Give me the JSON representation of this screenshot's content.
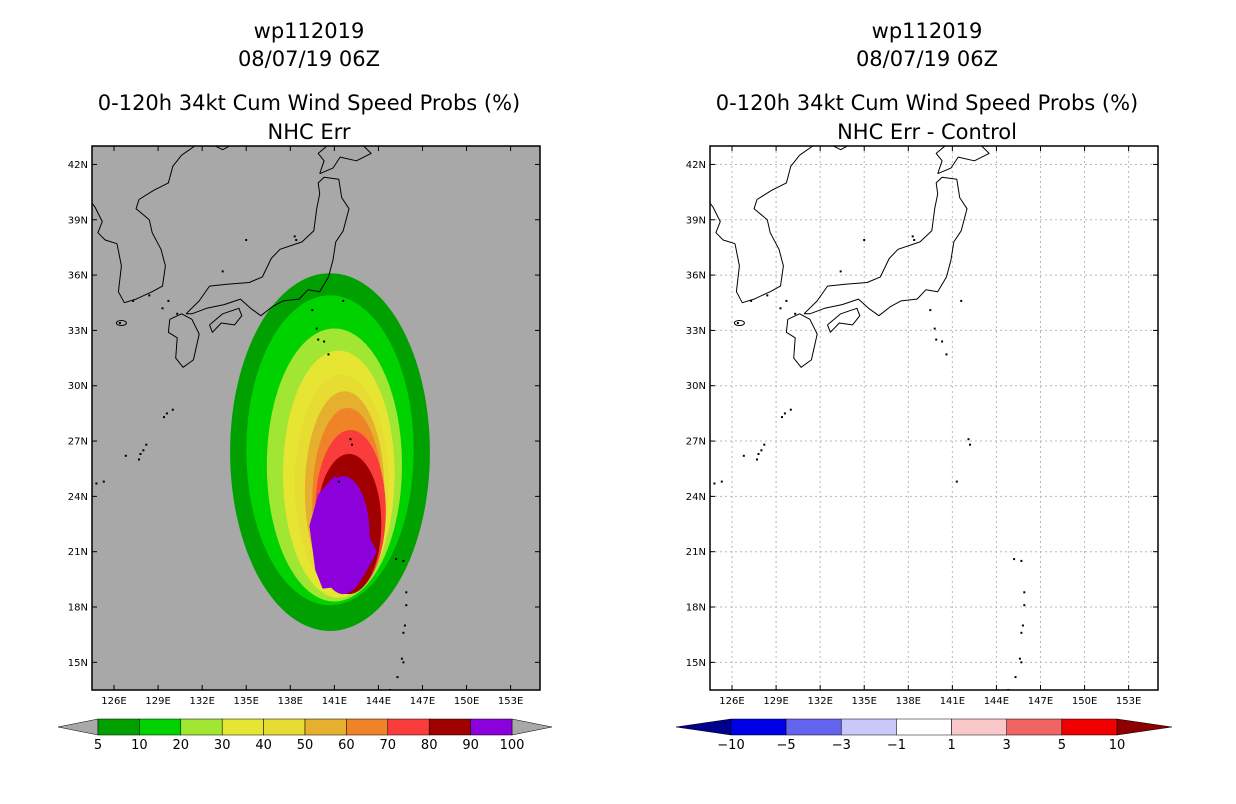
{
  "chart_data": [
    {
      "type": "heatmap",
      "title": [
        "wp112019",
        "08/07/19 06Z",
        "0-120h 34kt Cum Wind Speed Probs (%)",
        "NHC Err"
      ],
      "x_ticks": [
        "126E",
        "129E",
        "132E",
        "135E",
        "138E",
        "141E",
        "144E",
        "147E",
        "150E",
        "153E"
      ],
      "y_ticks": [
        "15N",
        "18N",
        "21N",
        "24N",
        "27N",
        "30N",
        "33N",
        "36N",
        "39N",
        "42N"
      ],
      "x_range_lon": [
        124.5,
        155.0
      ],
      "y_range_lat": [
        13.5,
        43.0
      ],
      "grid": false,
      "background": "#a8a8a8",
      "contour_levels": [
        5,
        10,
        20,
        30,
        40,
        50,
        60,
        70,
        80,
        90,
        100
      ],
      "colorbar": {
        "labels": [
          "5",
          "10",
          "20",
          "30",
          "40",
          "50",
          "60",
          "70",
          "80",
          "90",
          "100"
        ],
        "colors": [
          "#00a000",
          "#00d200",
          "#a0e632",
          "#e6e632",
          "#e6dc32",
          "#e6af2d",
          "#f08228",
          "#fa3c3c",
          "#a00000",
          "#8c00dc"
        ],
        "end_colors": [
          "#a8a8a8",
          "#a8a8a8"
        ]
      },
      "probability_regions": [
        {
          "level": 5,
          "center": [
            140.7,
            26.4
          ],
          "lon_halfwidth": 6.8,
          "lat_halfheight": 9.7
        },
        {
          "level": 10,
          "center": [
            140.7,
            26.5
          ],
          "lon_halfwidth": 5.7,
          "lat_halfheight": 8.4
        },
        {
          "level": 20,
          "center": [
            141.0,
            25.7
          ],
          "lon_halfwidth": 4.6,
          "lat_halfheight": 7.4
        },
        {
          "level": 30,
          "center": [
            141.3,
            25.2
          ],
          "lon_halfwidth": 3.8,
          "lat_halfheight": 6.7
        },
        {
          "level": 40,
          "center": [
            141.5,
            24.7
          ],
          "lon_halfwidth": 3.2,
          "lat_halfheight": 5.9
        },
        {
          "level": 50,
          "center": [
            141.7,
            24.3
          ],
          "lon_halfwidth": 2.7,
          "lat_halfheight": 5.4
        },
        {
          "level": 60,
          "center": [
            141.9,
            23.8
          ],
          "lon_halfwidth": 2.4,
          "lat_halfheight": 5.0
        },
        {
          "level": 70,
          "center": [
            142.1,
            23.2
          ],
          "lon_halfwidth": 2.4,
          "lat_halfheight": 4.4
        },
        {
          "level": 80,
          "center": [
            142.0,
            22.5
          ],
          "lon_halfwidth": 2.2,
          "lat_halfheight": 3.8
        },
        {
          "level": 90,
          "center": [
            141.6,
            21.9
          ],
          "lon_halfwidth": 1.8,
          "lat_halfheight": 3.2
        }
      ]
    },
    {
      "type": "heatmap",
      "title": [
        "wp112019",
        "08/07/19 06Z",
        "0-120h 34kt Cum Wind Speed Probs (%)",
        "NHC Err - Control"
      ],
      "x_ticks": [
        "126E",
        "129E",
        "132E",
        "135E",
        "138E",
        "141E",
        "144E",
        "147E",
        "150E",
        "153E"
      ],
      "y_ticks": [
        "15N",
        "18N",
        "21N",
        "24N",
        "27N",
        "30N",
        "33N",
        "36N",
        "39N",
        "42N"
      ],
      "x_range_lon": [
        124.5,
        155.0
      ],
      "y_range_lat": [
        13.5,
        43.0
      ],
      "grid": true,
      "background": "#ffffff",
      "contour_levels": [
        -10,
        -5,
        -3,
        -1,
        1,
        3,
        5,
        10
      ],
      "colorbar": {
        "labels": [
          "-10",
          "-5",
          "-3",
          "-1",
          "1",
          "3",
          "5",
          "10"
        ],
        "colors": [
          "#0000e6",
          "#6464f0",
          "#c8c8fa",
          "#ffffff",
          "#fac8c8",
          "#f06464",
          "#f00000"
        ],
        "end_colors": [
          "#00008c",
          "#8c0000"
        ]
      }
    }
  ]
}
